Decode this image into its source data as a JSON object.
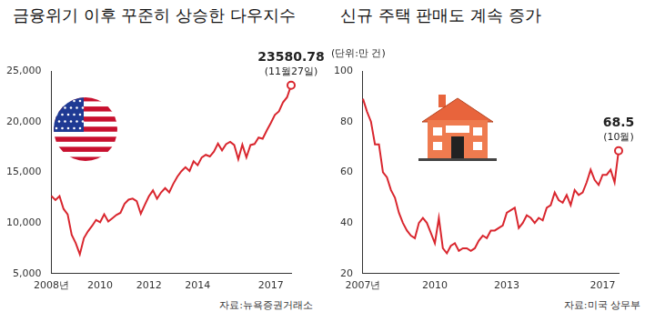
{
  "chart_data": [
    {
      "type": "line",
      "title": "금융위기 이후 꾸준히 상승한 다우지수",
      "source": "자료:뉴욕증권거래소",
      "annotations": [
        "23580.78",
        "(11월27일)"
      ],
      "color": "#d9262e",
      "grid": false,
      "ylim": [
        5000,
        25000
      ],
      "yticks": [
        {
          "value": 5000,
          "label": "5,000"
        },
        {
          "value": 10000,
          "label": "10,000"
        },
        {
          "value": 15000,
          "label": "15,000"
        },
        {
          "value": 20000,
          "label": "20,000"
        },
        {
          "value": 25000,
          "label": "25,000"
        }
      ],
      "categories": [
        "2008년",
        null,
        null,
        null,
        null,
        null,
        null,
        null,
        null,
        null,
        null,
        null,
        "2010",
        null,
        null,
        null,
        null,
        null,
        null,
        null,
        null,
        null,
        null,
        null,
        "2012",
        null,
        null,
        null,
        null,
        null,
        null,
        null,
        null,
        null,
        null,
        null,
        "2014",
        null,
        null,
        null,
        null,
        null,
        null,
        null,
        null,
        null,
        null,
        null,
        null,
        null,
        null,
        null,
        null,
        null,
        "2017",
        null,
        null,
        null,
        null,
        null
      ],
      "values": [
        12650,
        12260,
        12640,
        11380,
        10850,
        8830,
        8000,
        6900,
        8500,
        9170,
        9700,
        10300,
        10070,
        10860,
        10140,
        10460,
        10790,
        11000,
        11890,
        12300,
        12400,
        12140,
        10910,
        11800,
        12630,
        13210,
        12390,
        13010,
        13440,
        13020,
        13860,
        14570,
        15110,
        15500,
        15130,
        16090,
        15700,
        16460,
        16720,
        16560,
        17040,
        17830,
        17160,
        17780,
        18010,
        17690,
        16280,
        17720,
        16470,
        17690,
        17790,
        18430,
        18310,
        19120,
        19860,
        20660,
        21010,
        21890,
        22400,
        23580.78
      ]
    },
    {
      "type": "line",
      "title": "신규 주택 판매도 계속 증가",
      "y_label": "(단위:만 건)",
      "source": "자료:미국 상무부",
      "annotations": [
        "68.5",
        "(10월)"
      ],
      "color": "#d9262e",
      "grid": false,
      "ylim": [
        20,
        100
      ],
      "yticks": [
        20,
        40,
        60,
        80,
        100
      ],
      "categories": [
        "2007년",
        null,
        null,
        null,
        null,
        null,
        null,
        null,
        null,
        null,
        null,
        null,
        null,
        null,
        null,
        null,
        null,
        null,
        "2010",
        null,
        null,
        null,
        null,
        null,
        null,
        null,
        null,
        null,
        null,
        null,
        null,
        null,
        null,
        null,
        null,
        null,
        "2013",
        null,
        null,
        null,
        null,
        null,
        null,
        null,
        null,
        null,
        null,
        null,
        null,
        null,
        null,
        null,
        null,
        null,
        null,
        null,
        null,
        null,
        null,
        null,
        "2017",
        null,
        null,
        null,
        null
      ],
      "values": [
        89,
        84,
        80,
        71,
        71,
        60,
        58,
        53,
        50,
        44,
        40,
        37,
        35,
        34,
        40,
        42,
        40,
        36,
        32,
        42,
        30,
        28,
        31,
        32,
        29,
        30,
        30,
        29,
        30,
        33,
        35,
        34,
        37,
        37,
        38,
        39,
        44,
        45,
        46,
        38,
        40,
        43,
        42,
        40,
        42,
        41,
        46,
        47,
        52,
        49,
        48,
        51,
        47,
        53,
        51,
        52,
        56,
        61,
        57,
        55,
        59,
        59,
        61,
        56,
        68.5
      ]
    }
  ]
}
